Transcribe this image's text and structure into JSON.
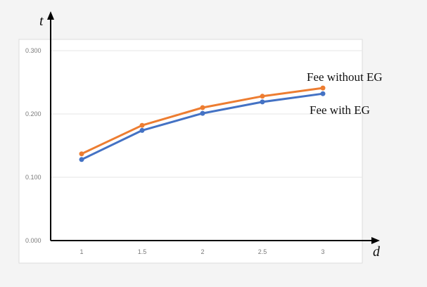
{
  "chart_data": {
    "type": "line",
    "xlabel": "d",
    "ylabel": "t",
    "categories": [
      "1",
      "1.5",
      "2",
      "2.5",
      "3"
    ],
    "x": [
      1,
      1.5,
      2,
      2.5,
      3
    ],
    "ylim": [
      0,
      0.3
    ],
    "yticks": [
      "0.000",
      "0.100",
      "0.200",
      "0.300"
    ],
    "grid": true,
    "series": [
      {
        "name": "Fee without EG",
        "values": [
          0.137,
          0.182,
          0.21,
          0.228,
          0.241
        ],
        "color": "#ed7d31"
      },
      {
        "name": "Fee with EG",
        "values": [
          0.128,
          0.174,
          0.201,
          0.219,
          0.232
        ],
        "color": "#4472c4"
      }
    ]
  }
}
